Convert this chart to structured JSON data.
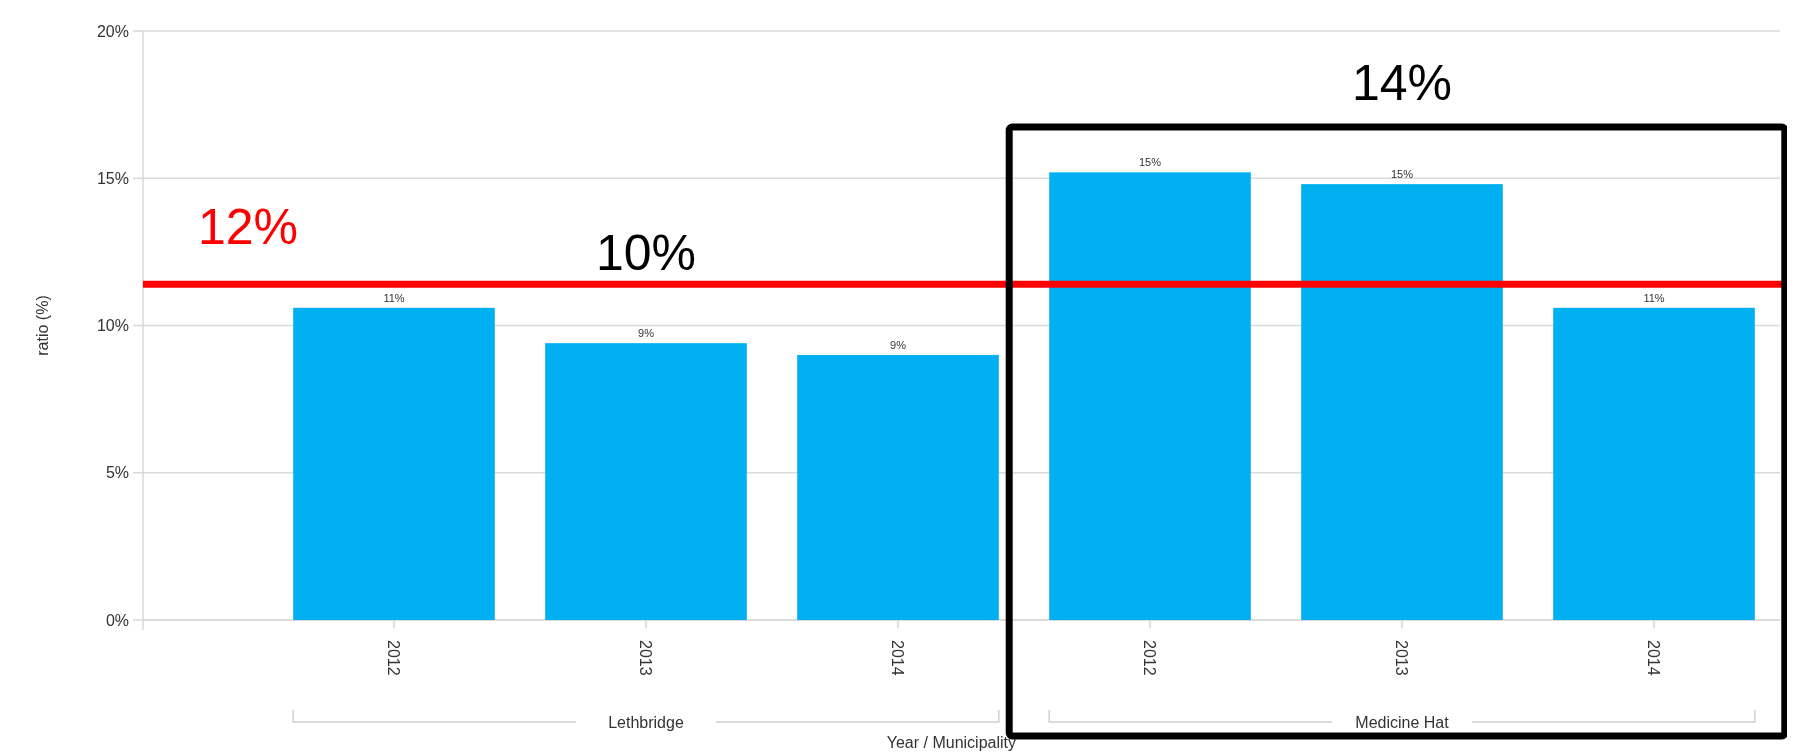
{
  "chart_data": {
    "type": "bar",
    "xlabel": "Year / Municipality",
    "ylabel": "ratio (%)",
    "categories": [
      "2012",
      "2013",
      "2014",
      "2012",
      "2013",
      "2014"
    ],
    "values": [
      10.6,
      9.4,
      9.0,
      15.2,
      14.8,
      10.6
    ],
    "value_labels": [
      "11%",
      "9%",
      "9%",
      "15%",
      "15%",
      "11%"
    ],
    "color": "#00b0f0",
    "ylim": [
      0,
      20
    ],
    "yticks": [
      {
        "value": 0,
        "label": "0%"
      },
      {
        "value": 5,
        "label": "5%"
      },
      {
        "value": 10,
        "label": "10%"
      },
      {
        "value": 15,
        "label": "15%"
      },
      {
        "value": 20,
        "label": "20%"
      }
    ],
    "grid": "y",
    "ref_lines": [
      {
        "axis": "y",
        "value": 11.4,
        "color": "#ff0000"
      }
    ],
    "annotations": [
      "12%",
      "10%",
      "14%",
      "Lethbridge",
      "Medicine Hat"
    ]
  }
}
